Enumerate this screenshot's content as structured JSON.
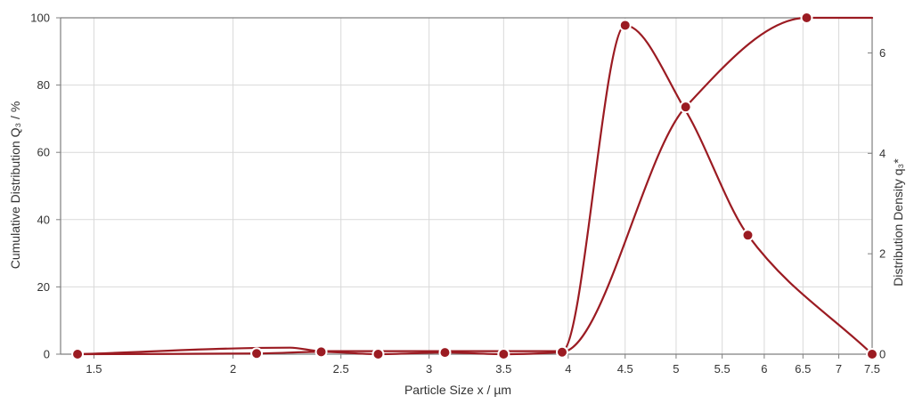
{
  "chart_data": {
    "type": "line",
    "title": "",
    "xlabel": "Particle Size x / µm",
    "ylabel_left": "Cumulative Distribution Q₃ / %",
    "ylabel_right": "Distribution Density q₃*",
    "x_scale": "log",
    "xlim": [
      1.4,
      7.5
    ],
    "ylim_left": [
      0,
      100
    ],
    "ylim_right": [
      0,
      6.7
    ],
    "grid": true,
    "legend": "none",
    "x_ticks": [
      "1.5",
      "2",
      "2.5",
      "3",
      "3.5",
      "4",
      "4.5",
      "5",
      "5.5",
      "6",
      "6.5",
      "7",
      "7.5"
    ],
    "x_tick_values": [
      1.5,
      2,
      2.5,
      3,
      3.5,
      4,
      4.5,
      5,
      5.5,
      6,
      6.5,
      7,
      7.5
    ],
    "y_ticks_left": [
      "0",
      "20",
      "40",
      "60",
      "80",
      "100"
    ],
    "y_tick_values_left": [
      0,
      20,
      40,
      60,
      80,
      100
    ],
    "y_ticks_right": [
      "0",
      "2",
      "4",
      "6"
    ],
    "y_tick_values_right": [
      0,
      2,
      4,
      6
    ],
    "series": [
      {
        "axis": "left",
        "x": [
          1.45,
          2.1,
          2.4,
          2.7,
          3.1,
          3.5,
          3.95,
          5.1,
          6.55,
          7.5
        ],
        "y": [
          0,
          0.2,
          0.7,
          0,
          0.5,
          0,
          0.6,
          73.5,
          100,
          100
        ],
        "markers": [
          0,
          1,
          2,
          3,
          4,
          5,
          6,
          7,
          8
        ],
        "color": "#9b1b22"
      },
      {
        "axis": "right",
        "x": [
          1.45,
          2.25,
          2.4,
          3.5,
          3.95,
          4.5,
          5.1,
          5.8,
          7.5
        ],
        "y": [
          0,
          0.13,
          0.06,
          0.06,
          0.06,
          6.55,
          4.85,
          2.37,
          0
        ],
        "markers": [
          5,
          7,
          8
        ],
        "color": "#9b1b22"
      }
    ],
    "colors": {
      "line": "#9b1b22",
      "marker": "#9b1b22",
      "grid": "#d9d9d9",
      "axis": "#7f7f7f",
      "text": "#333333"
    }
  }
}
